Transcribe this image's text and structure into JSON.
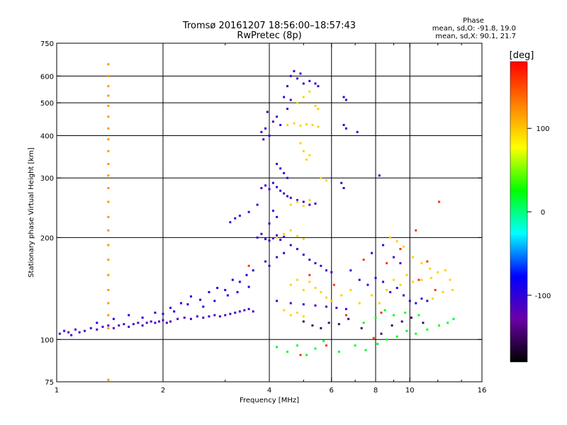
{
  "chart_data": {
    "type": "scatter",
    "title": "Tromsø 20161207 18:56:00–18:57:43",
    "subtitle": "RwPretec (8p)",
    "xlabel": "Frequency [MHz]",
    "ylabel": "Stationary phase Virtual Height [km]",
    "x_scale": "log",
    "y_scale": "log",
    "xlim": [
      1,
      16
    ],
    "ylim": [
      75,
      750
    ],
    "x_ticks": [
      1,
      2,
      4,
      6,
      8,
      10,
      16
    ],
    "x_minor_ticks": [
      3,
      5,
      7,
      9,
      12,
      14
    ],
    "y_ticks": [
      75,
      100,
      200,
      300,
      400,
      500,
      600,
      750
    ],
    "x_gridlines": [
      2,
      4,
      6,
      8,
      10
    ],
    "y_gridlines": [
      100,
      200,
      300,
      400,
      500,
      600
    ],
    "grid": true,
    "phase_stats": {
      "heading": "Phase",
      "line_o": "mean, sd,O: -91.8, 19.0",
      "line_x": "mean, sd,X:  90.1, 21.7"
    },
    "colorbar": {
      "unit": "[deg]",
      "range": [
        -180,
        180
      ],
      "ticks": [
        100,
        0,
        -100
      ],
      "stops": [
        "#000000",
        "#6a00a8",
        "#0000ff",
        "#00ffff",
        "#00ff00",
        "#ffff00",
        "#ff8000",
        "#ff0000"
      ]
    },
    "series": [
      {
        "kind": "o-mode trace",
        "color_phase": -110,
        "points": [
          [
            1.02,
            104
          ],
          [
            1.05,
            106
          ],
          [
            1.08,
            105
          ],
          [
            1.1,
            103
          ],
          [
            1.13,
            107
          ],
          [
            1.16,
            105
          ],
          [
            1.2,
            106
          ],
          [
            1.25,
            108
          ],
          [
            1.3,
            107
          ],
          [
            1.35,
            109
          ],
          [
            1.4,
            110
          ],
          [
            1.45,
            108
          ],
          [
            1.5,
            110
          ],
          [
            1.55,
            111
          ],
          [
            1.6,
            109
          ],
          [
            1.65,
            111
          ],
          [
            1.7,
            112
          ],
          [
            1.75,
            110
          ],
          [
            1.8,
            112
          ],
          [
            1.85,
            113
          ],
          [
            1.9,
            112
          ],
          [
            1.95,
            113
          ],
          [
            2.0,
            114
          ],
          [
            2.05,
            112
          ],
          [
            2.1,
            113
          ],
          [
            2.2,
            115
          ],
          [
            2.3,
            116
          ],
          [
            2.4,
            115
          ],
          [
            2.5,
            117
          ],
          [
            2.6,
            116
          ],
          [
            2.7,
            117
          ],
          [
            2.8,
            118
          ],
          [
            2.9,
            117
          ],
          [
            3.0,
            118
          ],
          [
            3.1,
            119
          ],
          [
            3.2,
            120
          ],
          [
            3.3,
            121
          ],
          [
            3.4,
            122
          ],
          [
            3.5,
            123
          ],
          [
            3.6,
            121
          ]
        ]
      },
      {
        "kind": "scattered low-freq points",
        "color_phase": -90,
        "points": [
          [
            1.3,
            112
          ],
          [
            1.45,
            115
          ],
          [
            1.6,
            118
          ],
          [
            1.75,
            116
          ],
          [
            1.9,
            120
          ],
          [
            2.1,
            124
          ],
          [
            2.25,
            128
          ],
          [
            2.4,
            134
          ],
          [
            2.55,
            131
          ],
          [
            2.7,
            138
          ],
          [
            2.85,
            142
          ],
          [
            3.0,
            140
          ],
          [
            3.15,
            150
          ],
          [
            3.3,
            148
          ],
          [
            3.45,
            155
          ],
          [
            3.6,
            160
          ],
          [
            2.0,
            119
          ],
          [
            2.15,
            121
          ],
          [
            2.35,
            127
          ],
          [
            2.6,
            125
          ],
          [
            2.8,
            130
          ],
          [
            3.05,
            135
          ],
          [
            3.25,
            138
          ],
          [
            3.5,
            143
          ]
        ]
      },
      {
        "kind": "vertical trace at 1.4 MHz",
        "color_phase": 120,
        "points": [
          [
            1.4,
            650
          ],
          [
            1.4,
            600
          ],
          [
            1.4,
            560
          ],
          [
            1.4,
            525
          ],
          [
            1.4,
            490
          ],
          [
            1.4,
            455
          ],
          [
            1.4,
            420
          ],
          [
            1.4,
            390
          ],
          [
            1.4,
            360
          ],
          [
            1.4,
            330
          ],
          [
            1.4,
            305
          ],
          [
            1.4,
            280
          ],
          [
            1.4,
            255
          ],
          [
            1.4,
            230
          ],
          [
            1.4,
            210
          ],
          [
            1.4,
            190
          ],
          [
            1.4,
            172
          ],
          [
            1.4,
            155
          ],
          [
            1.4,
            140
          ],
          [
            1.4,
            128
          ],
          [
            1.4,
            118
          ],
          [
            1.4,
            108
          ],
          [
            1.4,
            76
          ]
        ]
      },
      {
        "kind": "F-layer o-mode",
        "color_phase": -105,
        "points": [
          [
            3.7,
            200
          ],
          [
            3.8,
            205
          ],
          [
            3.9,
            198
          ],
          [
            4.0,
            196
          ],
          [
            4.1,
            199
          ],
          [
            4.2,
            203
          ],
          [
            4.3,
            197
          ],
          [
            4.4,
            201
          ],
          [
            3.8,
            280
          ],
          [
            3.9,
            285
          ],
          [
            4.0,
            278
          ],
          [
            4.1,
            290
          ],
          [
            4.2,
            282
          ],
          [
            4.3,
            275
          ],
          [
            4.4,
            270
          ],
          [
            4.5,
            265
          ],
          [
            3.8,
            410
          ],
          [
            3.9,
            420
          ],
          [
            4.0,
            400
          ],
          [
            4.1,
            440
          ],
          [
            4.2,
            455
          ],
          [
            4.3,
            430
          ],
          [
            3.85,
            390
          ],
          [
            3.95,
            470
          ],
          [
            4.5,
            560
          ],
          [
            4.6,
            600
          ],
          [
            4.7,
            620
          ],
          [
            4.8,
            590
          ],
          [
            4.9,
            610
          ],
          [
            5.0,
            570
          ],
          [
            5.2,
            580
          ],
          [
            5.4,
            570
          ],
          [
            5.5,
            560
          ],
          [
            4.4,
            520
          ],
          [
            4.5,
            480
          ],
          [
            4.6,
            510
          ],
          [
            4.2,
            330
          ],
          [
            4.3,
            320
          ],
          [
            4.4,
            310
          ],
          [
            4.5,
            300
          ],
          [
            4.6,
            262
          ],
          [
            4.8,
            258
          ],
          [
            5.0,
            255
          ],
          [
            5.2,
            250
          ],
          [
            5.4,
            252
          ],
          [
            3.9,
            170
          ],
          [
            4.0,
            165
          ],
          [
            4.2,
            175
          ],
          [
            4.4,
            180
          ],
          [
            4.6,
            190
          ],
          [
            4.8,
            185
          ],
          [
            5.0,
            178
          ],
          [
            5.2,
            172
          ],
          [
            5.4,
            168
          ],
          [
            5.6,
            165
          ],
          [
            5.8,
            160
          ],
          [
            6.0,
            158
          ],
          [
            4.2,
            130
          ],
          [
            4.6,
            128
          ],
          [
            5.0,
            127
          ],
          [
            5.4,
            126
          ],
          [
            5.8,
            125
          ],
          [
            6.2,
            124
          ],
          [
            6.6,
            123
          ],
          [
            4.1,
            240
          ],
          [
            4.2,
            230
          ],
          [
            4.0,
            220
          ],
          [
            3.7,
            250
          ],
          [
            3.5,
            238
          ],
          [
            3.3,
            232
          ],
          [
            3.2,
            228
          ],
          [
            3.1,
            222
          ],
          [
            6.5,
            520
          ],
          [
            6.6,
            510
          ],
          [
            6.5,
            430
          ],
          [
            6.6,
            420
          ],
          [
            6.4,
            290
          ],
          [
            6.5,
            280
          ],
          [
            7.1,
            410
          ],
          [
            8.2,
            305
          ],
          [
            6.8,
            160
          ],
          [
            7.2,
            150
          ],
          [
            7.6,
            145
          ],
          [
            8.0,
            152
          ],
          [
            8.4,
            148
          ],
          [
            8.8,
            138
          ],
          [
            9.2,
            142
          ],
          [
            9.6,
            135
          ],
          [
            10.0,
            130
          ],
          [
            10.4,
            128
          ],
          [
            10.8,
            132
          ],
          [
            11.2,
            130
          ],
          [
            7.8,
            180
          ],
          [
            8.4,
            190
          ],
          [
            9.0,
            175
          ],
          [
            9.4,
            168
          ]
        ]
      },
      {
        "kind": "F-layer x-mode",
        "color_phase": 95,
        "points": [
          [
            4.2,
            200
          ],
          [
            4.4,
            205
          ],
          [
            4.6,
            210
          ],
          [
            4.8,
            202
          ],
          [
            5.0,
            198
          ],
          [
            4.6,
            250
          ],
          [
            4.8,
            255
          ],
          [
            5.0,
            248
          ],
          [
            5.2,
            258
          ],
          [
            4.5,
            430
          ],
          [
            4.7,
            435
          ],
          [
            4.9,
            428
          ],
          [
            5.1,
            432
          ],
          [
            5.3,
            430
          ],
          [
            5.5,
            425
          ],
          [
            4.8,
            500
          ],
          [
            5.0,
            520
          ],
          [
            5.2,
            540
          ],
          [
            5.4,
            490
          ],
          [
            5.5,
            480
          ],
          [
            4.9,
            380
          ],
          [
            5.0,
            360
          ],
          [
            5.1,
            340
          ],
          [
            5.2,
            350
          ],
          [
            4.6,
            145
          ],
          [
            4.8,
            150
          ],
          [
            5.0,
            140
          ],
          [
            5.2,
            148
          ],
          [
            5.4,
            142
          ],
          [
            5.6,
            138
          ],
          [
            5.8,
            133
          ],
          [
            6.0,
            130
          ],
          [
            4.4,
            122
          ],
          [
            4.6,
            118
          ],
          [
            4.8,
            120
          ],
          [
            5.0,
            117
          ],
          [
            6.4,
            135
          ],
          [
            6.8,
            140
          ],
          [
            7.2,
            128
          ],
          [
            7.8,
            135
          ],
          [
            8.2,
            128
          ],
          [
            8.6,
            140
          ],
          [
            9.0,
            150
          ],
          [
            9.4,
            145
          ],
          [
            9.8,
            155
          ],
          [
            10.2,
            148
          ],
          [
            10.8,
            150
          ],
          [
            11.5,
            152
          ],
          [
            12.0,
            158
          ],
          [
            12.6,
            160
          ],
          [
            13.0,
            150
          ],
          [
            13.2,
            140
          ],
          [
            12.4,
            138
          ],
          [
            11.6,
            132
          ],
          [
            5.6,
            300
          ],
          [
            5.8,
            295
          ],
          [
            8.8,
            200
          ],
          [
            9.2,
            195
          ],
          [
            9.6,
            188
          ],
          [
            10.2,
            175
          ],
          [
            10.8,
            168
          ],
          [
            11.4,
            162
          ]
        ]
      },
      {
        "kind": "mixed phase scatter",
        "color_phase": 20,
        "points": [
          [
            4.2,
            95
          ],
          [
            4.5,
            92
          ],
          [
            4.8,
            96
          ],
          [
            5.1,
            90
          ],
          [
            5.4,
            94
          ],
          [
            5.7,
            99
          ],
          [
            6.3,
            92
          ],
          [
            7.0,
            96
          ],
          [
            7.5,
            93
          ],
          [
            8.1,
            97
          ],
          [
            8.6,
            100
          ],
          [
            9.2,
            102
          ],
          [
            9.8,
            106
          ],
          [
            10.4,
            104
          ],
          [
            11.2,
            107
          ],
          [
            12.1,
            110
          ],
          [
            12.8,
            112
          ],
          [
            13.3,
            115
          ],
          [
            7.4,
            112
          ],
          [
            8.0,
            116
          ],
          [
            8.5,
            122
          ],
          [
            9.0,
            118
          ],
          [
            9.7,
            120
          ],
          [
            10.6,
            118
          ]
        ]
      },
      {
        "kind": "negative phase scatter",
        "color_phase": -150,
        "points": [
          [
            5.0,
            113
          ],
          [
            5.3,
            110
          ],
          [
            5.6,
            108
          ],
          [
            5.9,
            112
          ],
          [
            6.3,
            111
          ],
          [
            6.7,
            115
          ],
          [
            7.3,
            108
          ],
          [
            8.3,
            104
          ],
          [
            8.9,
            110
          ],
          [
            9.5,
            113
          ],
          [
            10.1,
            116
          ],
          [
            10.9,
            112
          ]
        ]
      },
      {
        "kind": "high phase scatter",
        "color_phase": 160,
        "points": [
          [
            5.2,
            155
          ],
          [
            6.1,
            145
          ],
          [
            7.4,
            172
          ],
          [
            8.6,
            168
          ],
          [
            9.4,
            185
          ],
          [
            10.4,
            210
          ],
          [
            11.2,
            170
          ],
          [
            12.1,
            255
          ],
          [
            7.9,
            101
          ],
          [
            6.6,
            118
          ],
          [
            5.8,
            96
          ],
          [
            4.9,
            90
          ],
          [
            3.5,
            165
          ],
          [
            8.3,
            120
          ],
          [
            10.6,
            150
          ],
          [
            11.8,
            140
          ]
        ]
      }
    ]
  }
}
